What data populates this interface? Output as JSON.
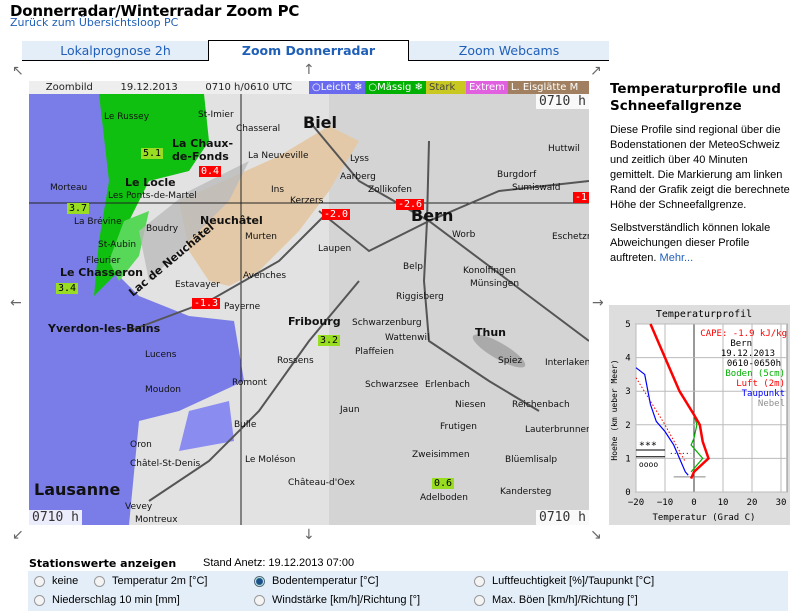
{
  "header": {
    "title": "Donnerradar/Winterradar Zoom PC",
    "back_link": "Zurück zum Übersichtsloop PC"
  },
  "tabs": [
    {
      "label": "Lokalprognose 2h",
      "active": false
    },
    {
      "label": "Zoom Donnerradar",
      "active": true
    },
    {
      "label": "Zoom Webcams",
      "active": false
    }
  ],
  "map": {
    "caption": "Zoombild",
    "date": "19.12.2013",
    "time": "0710 h/0610 UTC",
    "legend": [
      {
        "label": "○Leicht ❄",
        "color": "#6a6aee"
      },
      {
        "label": "○Mässig ❄",
        "color": "#00b000"
      },
      {
        "label": "Stark",
        "color": "#c8c820"
      },
      {
        "label": "Extrem",
        "color": "#e060e0"
      },
      {
        "label": "L. Eisglätte M",
        "color": "#a08060"
      }
    ],
    "time_labels": [
      "0710 h",
      "0710 h",
      "0710 h"
    ],
    "towns": [
      "Le Russey",
      "St-Imier",
      "Biel",
      "Chasseral",
      "La Chaux-de-Fonds",
      "Le Locle",
      "La Neuveville",
      "Morteau",
      "Les Ponts-de-Martel",
      "Lyss",
      "Aarberg",
      "Burgdorf",
      "Sumiswald",
      "Huttwil",
      "Zollikofen",
      "Neuchâtel",
      "Ins",
      "Kerzers",
      "Bern",
      "Worb",
      "La Brévine",
      "Boudry",
      "Murten",
      "Laupen",
      "Belp",
      "Konolfingen",
      "Münsingen",
      "Eschetzmatt",
      "Fleurier",
      "Le Chasseron",
      "St-Aubin",
      "Avenches",
      "Estavayer",
      "Payerne",
      "Riggisberg",
      "Yverdon-les-Bains",
      "Fribourg",
      "Schwarzenburg",
      "Thun",
      "Wattenwil",
      "Plaffeien",
      "Interlaken",
      "Lucens",
      "Rossens",
      "Schwarzsee",
      "Erlenbach",
      "Spiez",
      "Moudon",
      "Romont",
      "Bulle",
      "Jaun",
      "Niesen",
      "Reichenbach",
      "Lauterbrunnen",
      "Zweisimmen",
      "Frutigen",
      "Blüemlisalp",
      "Lausanne",
      "Vevey",
      "Château-d'Oex",
      "Le Moléson",
      "Adelboden",
      "Kandersteg",
      "Montreux",
      "Châtel-St-Denis",
      "Oron",
      "Lac de Neuchâtel"
    ],
    "stations": [
      {
        "value": "5.1",
        "type": "green"
      },
      {
        "value": "3.7",
        "type": "green"
      },
      {
        "value": "3.4",
        "type": "green"
      },
      {
        "value": "3.2",
        "type": "green"
      },
      {
        "value": "0.6",
        "type": "green"
      },
      {
        "value": "0.4",
        "type": "red"
      },
      {
        "value": "-2.0",
        "type": "red"
      },
      {
        "value": "-2.6",
        "type": "red"
      },
      {
        "value": "-1.3",
        "type": "red"
      },
      {
        "value": "-1.1",
        "type": "red"
      }
    ]
  },
  "side": {
    "title": "Temperaturprofile und Schneefallgrenze",
    "p1": "Diese Profile sind regional über die Bodenstationen der MeteoSchweiz und zeitlich über 40 Minuten gemittelt. Die Markierung am linken Rand der Grafik zeigt die berechnete Höhe der Schneefallgrenze.",
    "p2": "Selbstverständlich können lokale Abweichungen dieser Profile auftreten.",
    "more": "Mehr..."
  },
  "profile": {
    "title": "Temperaturprofil",
    "cape": "CAPE: -1.9 kJ/kg",
    "station": "Bern",
    "date": "19.12.2013",
    "period": "0610-0650h",
    "xlabel": "Temperatur (Grad C)",
    "ylabel": "Hoehe (km ueber Meer)",
    "xticks": [
      -20,
      -10,
      0,
      10,
      20,
      30
    ],
    "yticks": [
      0,
      1,
      2,
      3,
      4,
      5
    ],
    "snow_symbol": "***",
    "rain_symbol": "oooo",
    "series": [
      {
        "name": "Boden (5cm)",
        "color": "#00b000",
        "points": [
          [
            -15,
            5
          ],
          [
            -10,
            4
          ],
          [
            -5,
            3
          ],
          [
            0,
            2.3
          ],
          [
            1,
            2
          ],
          [
            0,
            1.6
          ],
          [
            -1,
            1.4
          ],
          [
            3,
            1
          ],
          [
            -1,
            0.6
          ]
        ]
      },
      {
        "name": "Luft (2m)",
        "color": "#ff0000",
        "points": [
          [
            -15,
            5
          ],
          [
            -10,
            4
          ],
          [
            -5,
            3
          ],
          [
            0,
            2.3
          ],
          [
            2,
            2
          ],
          [
            3,
            1.5
          ],
          [
            5,
            1
          ],
          [
            0,
            0.6
          ],
          [
            -1,
            0.4
          ]
        ]
      },
      {
        "name": "Taupunkt",
        "color": "#0000ff",
        "points": [
          [
            -20,
            3.7
          ],
          [
            -17,
            3.5
          ],
          [
            -15,
            2.6
          ],
          [
            -13,
            2.1
          ],
          [
            -10,
            1.8
          ],
          [
            -7,
            1.4
          ],
          [
            -5,
            1
          ],
          [
            -3,
            0.6
          ],
          [
            -2,
            0.5
          ]
        ]
      },
      {
        "name": "Nebel",
        "color": "#909090",
        "points": []
      }
    ]
  },
  "stations_panel": {
    "heading": "Stationswerte anzeigen",
    "stand": "Stand Anetz: 19.12.2013 07:00",
    "options": [
      {
        "label": "keine",
        "checked": false
      },
      {
        "label": "Temperatur 2m [°C]",
        "checked": false
      },
      {
        "label": "Bodentemperatur [°C]",
        "checked": true
      },
      {
        "label": "Luftfeuchtigkeit [%]/Taupunkt [°C]",
        "checked": false
      },
      {
        "label": "Niederschlag 10 min [mm]",
        "checked": false
      },
      {
        "label": "Windstärke [km/h]/Richtung [°]",
        "checked": false
      },
      {
        "label": "Max. Böen [km/h]/Richtung [°]",
        "checked": false
      }
    ]
  }
}
